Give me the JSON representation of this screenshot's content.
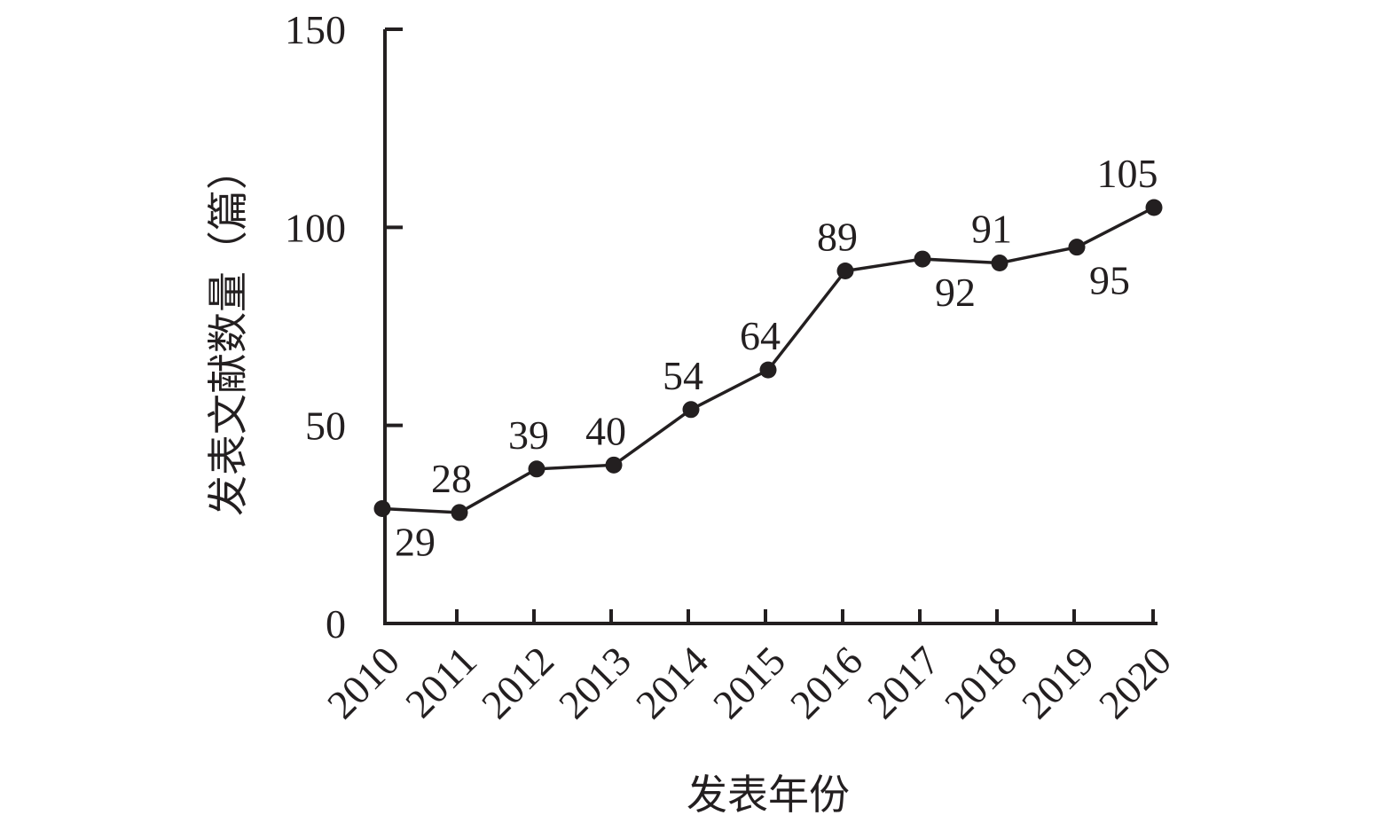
{
  "chart_data": {
    "type": "line",
    "xlabel": "发表年份",
    "ylabel": "发表文献数量（篇）",
    "ylim": [
      0,
      150
    ],
    "yticks": [
      "0",
      "50",
      "100",
      "150"
    ],
    "categories": [
      "2010",
      "2011",
      "2012",
      "2013",
      "2014",
      "2015",
      "2016",
      "2017",
      "2018",
      "2019",
      "2020"
    ],
    "values": [
      29,
      28,
      39,
      40,
      54,
      64,
      89,
      92,
      91,
      95,
      105
    ],
    "labels": [
      "29",
      "28",
      "39",
      "40",
      "54",
      "64",
      "89",
      "92",
      "91",
      "95",
      "105"
    ],
    "label_placement": [
      "below",
      "above",
      "above",
      "above",
      "above",
      "above",
      "above",
      "below",
      "above",
      "below",
      "above"
    ],
    "grid": false,
    "colors": {
      "ink": "#231f20"
    }
  }
}
